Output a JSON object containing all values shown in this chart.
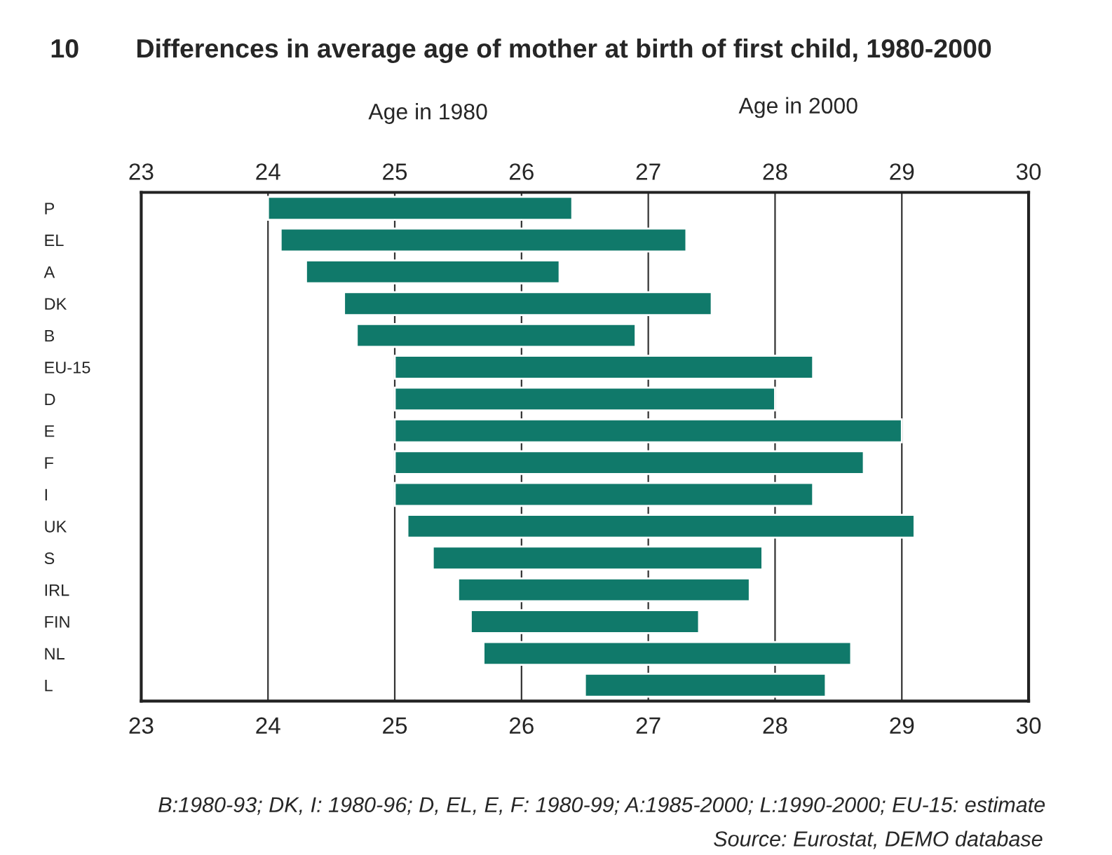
{
  "chart_data": {
    "type": "bar",
    "orientation": "horizontal",
    "title": "Differences in average age of mother at birth of first child, 1980-2000",
    "categories": [
      "P",
      "EL",
      "A",
      "DK",
      "B",
      "EU-15",
      "D",
      "E",
      "F",
      "I",
      "UK",
      "S",
      "IRL",
      "FIN",
      "NL",
      "L"
    ],
    "base": [
      24.0,
      24.1,
      24.3,
      24.6,
      24.7,
      25.0,
      25.0,
      25.0,
      25.0,
      25.0,
      25.1,
      25.3,
      25.5,
      25.6,
      25.7,
      26.5
    ],
    "values": [
      2.4,
      3.2,
      2.0,
      2.9,
      2.2,
      3.3,
      3.0,
      4.0,
      3.7,
      3.3,
      4.0,
      2.6,
      2.3,
      1.8,
      2.9,
      1.9
    ],
    "color": "#10796a",
    "xlim": [
      23,
      30
    ],
    "xticks": [
      23,
      24,
      25,
      26,
      27,
      28,
      29,
      30
    ],
    "x2lim": [
      23,
      30
    ],
    "x2ticks": [
      23,
      24,
      25,
      26,
      27,
      28,
      29,
      30
    ],
    "grid": "x",
    "legend": false,
    "annotations": [
      "10",
      "Age in 1980",
      "Age in 2000",
      "B:1980-93; DK, I: 1980-96; D, EL, E, F: 1980-99; A:1985-2000; L:1990-2000; EU-15: estimate",
      "Source: Eurostat, DEMO database"
    ]
  }
}
